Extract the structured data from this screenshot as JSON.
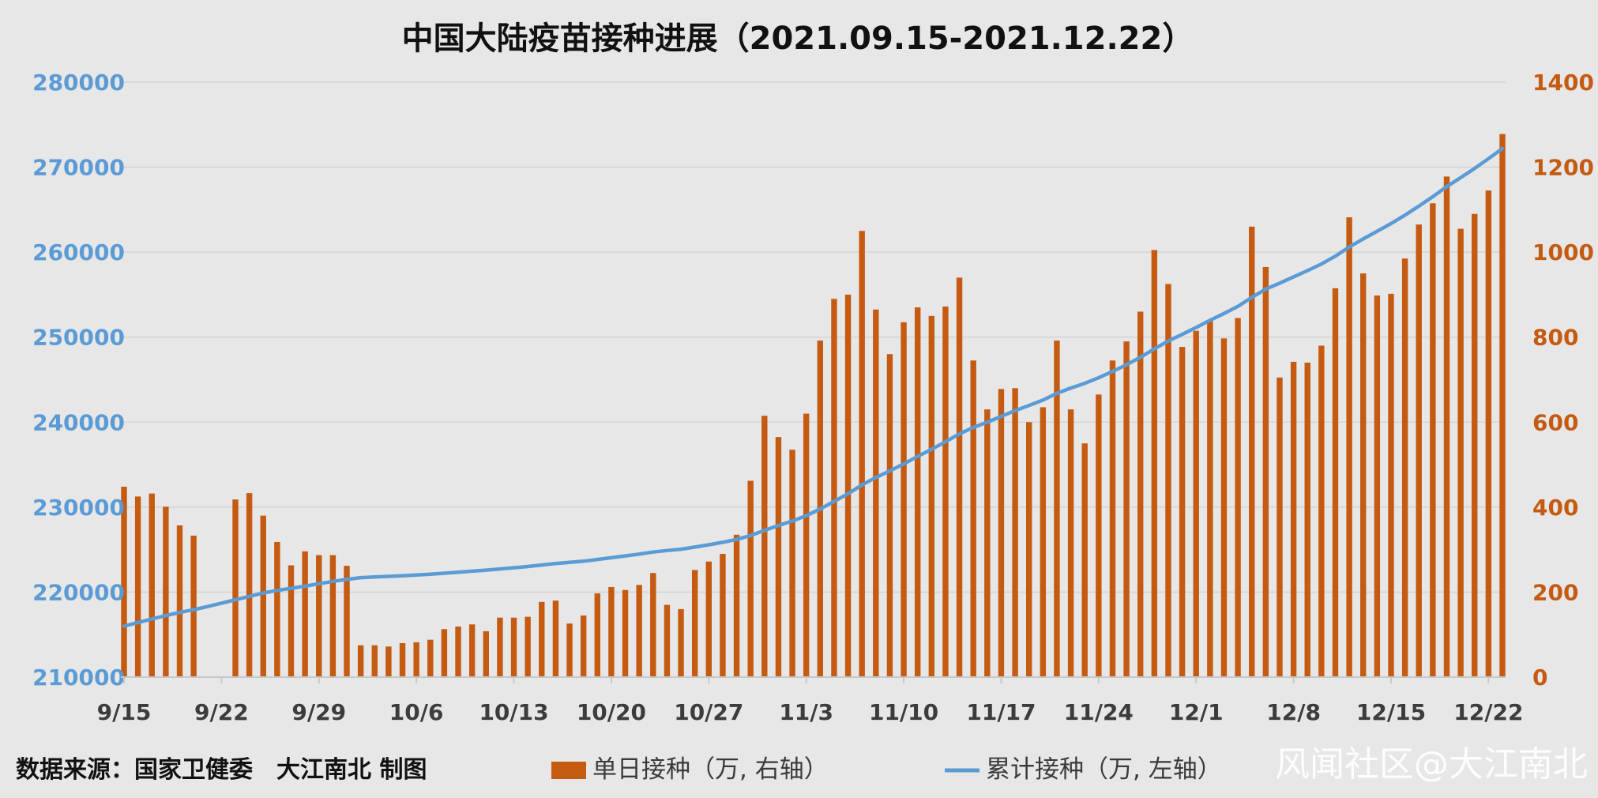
{
  "chart_data": {
    "type": "bar+line",
    "title": "中国大陆疫苗接种进展（2021.09.15-2021.12.22）",
    "x_tick_labels": [
      "9/15",
      "9/22",
      "9/29",
      "10/6",
      "10/13",
      "10/20",
      "10/27",
      "11/3",
      "11/10",
      "11/17",
      "11/24",
      "12/1",
      "12/8",
      "12/15",
      "12/22"
    ],
    "y_left": {
      "ticks": [
        "210000",
        "220000",
        "230000",
        "240000",
        "250000",
        "260000",
        "270000",
        "280000"
      ],
      "range": [
        210000,
        280000
      ]
    },
    "y_right": {
      "ticks": [
        "0",
        "200",
        "400",
        "600",
        "800",
        "1000",
        "1200",
        "1400"
      ],
      "range": [
        0,
        1400
      ]
    },
    "series": [
      {
        "name": "单日接种（万, 右轴）",
        "type": "bar",
        "color": "#c55a11",
        "values": [
          448,
          425,
          432,
          401,
          357,
          333,
          null,
          null,
          418,
          433,
          380,
          318,
          263,
          296,
          287,
          287,
          262,
          75,
          75,
          72,
          80,
          82,
          88,
          113,
          119,
          124,
          108,
          140,
          140,
          142,
          177,
          180,
          126,
          145,
          197,
          212,
          205,
          217,
          245,
          170,
          160,
          252,
          272,
          290,
          335,
          462,
          615,
          565,
          535,
          620,
          792,
          890,
          900,
          1050,
          865,
          760,
          835,
          870,
          850,
          872,
          940,
          745,
          630,
          678,
          680,
          600,
          635,
          792,
          630,
          550,
          665,
          745,
          790,
          860,
          1005,
          925,
          777,
          815,
          838,
          797,
          845,
          1060,
          965,
          705,
          742,
          740,
          780,
          915,
          1082,
          950,
          898,
          902,
          985,
          1065,
          1115,
          1178,
          1055,
          1090,
          1145,
          1278
        ]
      },
      {
        "name": "累计接种（万, 左轴）",
        "type": "line",
        "color": "#5b9bd5",
        "values": [
          216000,
          216420,
          216840,
          217240,
          217600,
          217930,
          218300,
          218700,
          219100,
          219500,
          219900,
          220200,
          220450,
          220700,
          220990,
          221270,
          221500,
          221700,
          221780,
          221850,
          221930,
          222010,
          222100,
          222220,
          222340,
          222470,
          222590,
          222730,
          222870,
          223010,
          223190,
          223370,
          223500,
          223640,
          223840,
          224050,
          224260,
          224470,
          224720,
          224890,
          225050,
          225300,
          225570,
          225860,
          226200,
          226660,
          227270,
          227840,
          228370,
          228990,
          229780,
          230670,
          231570,
          232620,
          233490,
          234250,
          235090,
          235960,
          236810,
          237680,
          238620,
          239370,
          240000,
          240680,
          241360,
          241960,
          242590,
          243390,
          244010,
          244560,
          245220,
          245970,
          246760,
          247620,
          248630,
          249550,
          250330,
          251140,
          251980,
          252780,
          253620,
          254680,
          255650,
          256350,
          257090,
          257830,
          258610,
          259530,
          260610,
          261560,
          262460,
          263360,
          264350,
          265410,
          266530,
          267710,
          268760,
          269850,
          271000,
          272200
        ]
      }
    ],
    "legend_position": "bottom",
    "grid": true
  },
  "footer": {
    "source": "数据来源：国家卫健委　大江南北 制图",
    "legend_bar_label": "单日接种（万, 右轴）",
    "legend_line_label": "累计接种（万, 左轴）",
    "watermark": "风闻社区@大江南北"
  }
}
